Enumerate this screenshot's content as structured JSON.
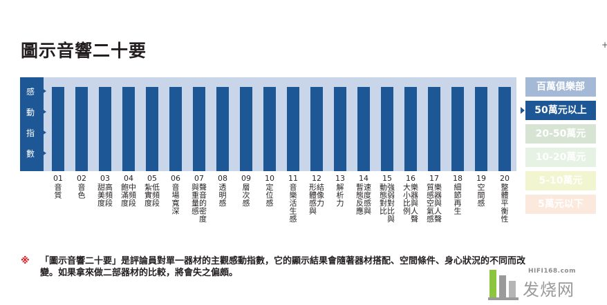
{
  "page": {
    "title": "圖示音響二十要"
  },
  "chart_data": {
    "type": "bar",
    "title": "圖示音響二十要",
    "ylabel": "感動指數",
    "ylabel_chars": [
      "感",
      "動",
      "指",
      "數"
    ],
    "categories": [
      {
        "num": "01",
        "label": "音質"
      },
      {
        "num": "02",
        "label": "音色"
      },
      {
        "num": "03",
        "label": "高頻段,甜美度"
      },
      {
        "num": "04",
        "label": "中頻段,飽滿度"
      },
      {
        "num": "05",
        "label": "低頻段,紮實度"
      },
      {
        "num": "06",
        "label": "音場寬深"
      },
      {
        "num": "07",
        "label": "聲音的密度,與重量感"
      },
      {
        "num": "08",
        "label": "透明感"
      },
      {
        "num": "09",
        "label": "層次感"
      },
      {
        "num": "10",
        "label": "定位感"
      },
      {
        "num": "11",
        "label": "音樂活生感"
      },
      {
        "num": "12",
        "label": "結像力,形體感與"
      },
      {
        "num": "13",
        "label": "解析力"
      },
      {
        "num": "14",
        "label": "速度感與,暫態反應"
      },
      {
        "num": "15",
        "label": "強弱對比與,動態對比"
      },
      {
        "num": "16",
        "label": "樂器與人聲,大小比例"
      },
      {
        "num": "17",
        "label": "樂器與人聲,質感空氣感"
      },
      {
        "num": "18",
        "label": "細節再生"
      },
      {
        "num": "19",
        "label": "空間感"
      },
      {
        "num": "20",
        "label": "整體平衡性"
      }
    ],
    "series": [
      {
        "name": "50萬元以上",
        "values": [
          4,
          4,
          4,
          4,
          4,
          4,
          4,
          4,
          4,
          4,
          4,
          4,
          4,
          4,
          4,
          4,
          4,
          4,
          4,
          4
        ]
      }
    ],
    "ylim": [
      0,
      4
    ],
    "grid": false,
    "legend_position": "right"
  },
  "legend": {
    "items": [
      {
        "label": "百萬俱樂部",
        "color": "#a3b9d6",
        "active": false
      },
      {
        "label": "50萬元以上",
        "color": "#1e5796",
        "active": true
      },
      {
        "label": "20-50萬元",
        "color": "#d8e4d3",
        "active": false
      },
      {
        "label": "10-20萬元",
        "color": "#e6f2e3",
        "active": false
      },
      {
        "label": "5-10萬元",
        "color": "#f2f6d0",
        "active": false
      },
      {
        "label": "5萬元以下",
        "color": "#fbe9de",
        "active": false
      }
    ]
  },
  "colors": {
    "bar": "#1e5796",
    "axis_band": "#1e5796",
    "bar_background": "#c9d6e9",
    "title": "#231f20",
    "note_mark": "#d7191c"
  },
  "note": {
    "mark": "※",
    "text": "「圖示音響二十要」是評論員對單一器材的主觀感動指數，它的顯示結果會隨著器材搭配、空間條件、身心狀況的不同而改變。如果拿來做二部器材的比較，將會失之偏頗。"
  },
  "watermark": {
    "url": "HIFI168.com",
    "text": "发烧网"
  }
}
